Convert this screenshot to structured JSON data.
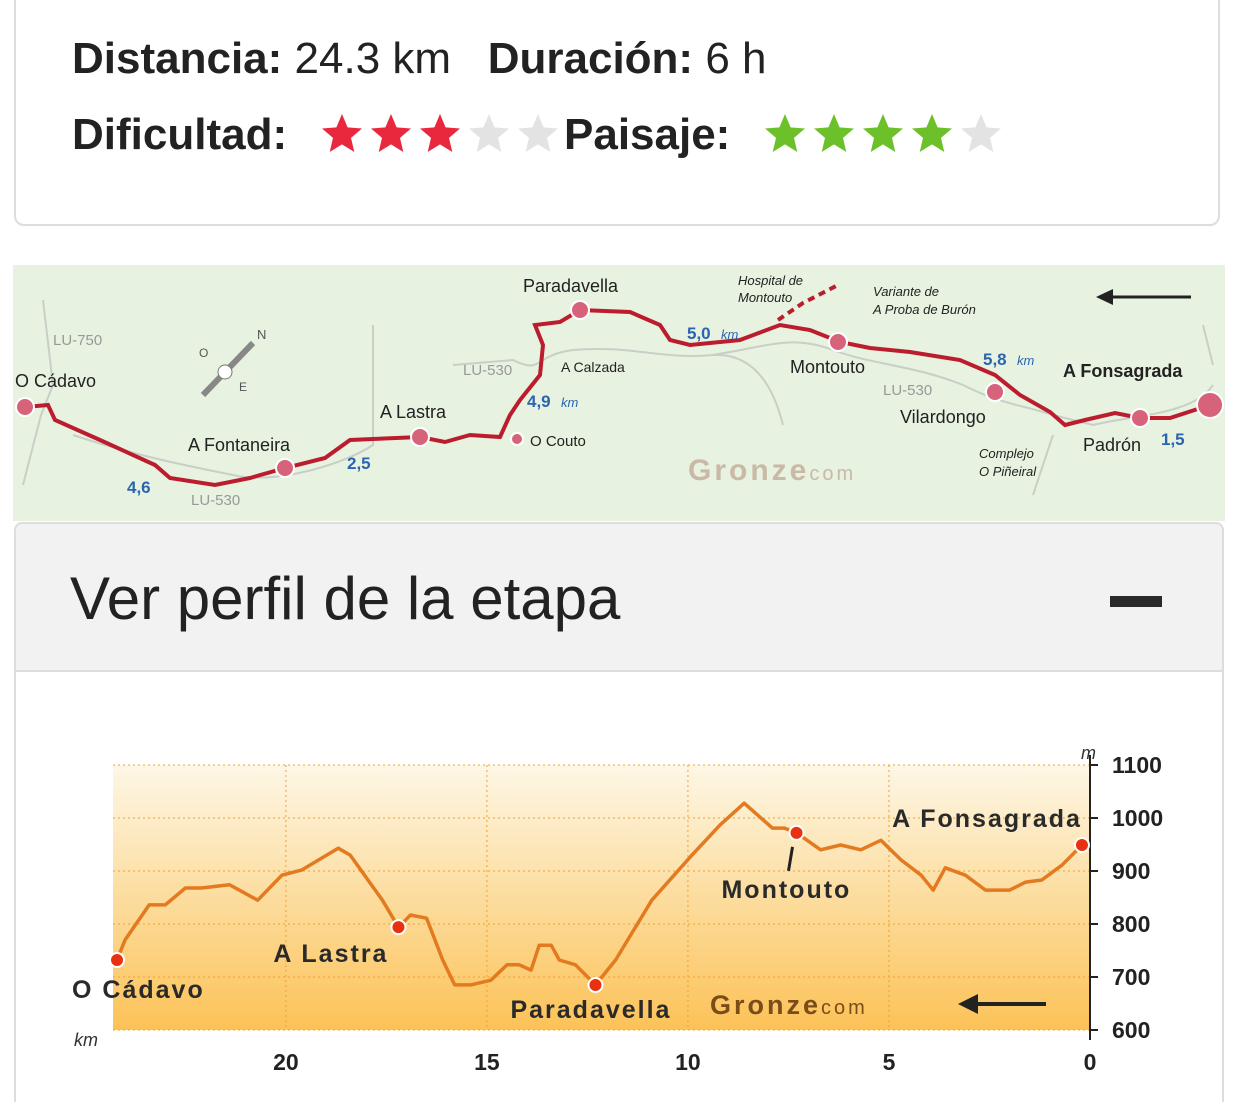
{
  "info": {
    "distance_label": "Distancia:",
    "distance": "24.3 km",
    "duration_label": "Duración:",
    "duration": "6 h",
    "difficulty_label": "Dificultad:",
    "difficulty": {
      "rating": 3,
      "out_of": 5,
      "color": "#e8283c"
    },
    "scenery_label": "Paisaje:",
    "scenery": {
      "rating": 4,
      "out_of": 5,
      "color": "#6cc12a"
    }
  },
  "map": {
    "labels": [
      "LU-750",
      "O Cádavo",
      "A Fontaneira",
      "LU-530",
      "A Lastra",
      "LU-530",
      "A Calzada",
      "O Couto",
      "Paradavella",
      "Hospital de",
      "Montouto",
      "Variante de",
      "A Proba de Burón",
      "Montouto",
      "LU-530",
      "Vilardongo",
      "A Fonsagrada",
      "Complejo",
      "O Piñeiral",
      "Padrón"
    ],
    "distances": [
      "4,6",
      "2,5",
      "4,9",
      "5,0",
      "5,8",
      "1,5"
    ],
    "unit": "km",
    "compass": [
      "N",
      "O",
      "E"
    ],
    "brand": "Gronze",
    "brand_suffix": "com"
  },
  "section": {
    "title": "Ver perfil de la etapa"
  },
  "chart_data": {
    "type": "line",
    "x_label": "km",
    "y_label": "m",
    "color": "#e37a20",
    "x": [
      24.2,
      24.0,
      23.4,
      23.0,
      22.5,
      22.1,
      21.4,
      20.7,
      20.1,
      19.6,
      18.7,
      18.4,
      17.6,
      17.2,
      16.9,
      16.5,
      16.1,
      15.8,
      15.4,
      14.9,
      14.5,
      14.2,
      13.9,
      13.7,
      13.4,
      13.2,
      12.8,
      12.3,
      11.8,
      10.9,
      9.9,
      9.2,
      8.6,
      7.9,
      7.6,
      7.3,
      6.7,
      6.2,
      5.7,
      5.2,
      4.7,
      4.2,
      3.9,
      3.6,
      3.1,
      2.6,
      2.0,
      1.6,
      1.2,
      0.7,
      0.2
    ],
    "values": [
      732,
      770,
      836,
      836,
      868,
      868,
      874,
      845,
      892,
      902,
      943,
      930,
      845,
      794,
      817,
      811,
      732,
      685,
      685,
      694,
      723,
      723,
      713,
      760,
      760,
      732,
      723,
      685,
      732,
      845,
      930,
      987,
      1028,
      981,
      981,
      972,
      940,
      949,
      940,
      958,
      921,
      892,
      864,
      906,
      892,
      864,
      864,
      879,
      883,
      911,
      949
    ],
    "waypoints": {
      "names": [
        "O Cádavo",
        "A Lastra",
        "Paradavella",
        "Montouto",
        "A Fonsagrada"
      ],
      "x": [
        24.2,
        17.2,
        12.3,
        7.3,
        0.2
      ],
      "values": [
        732,
        794,
        685,
        972,
        949
      ],
      "color": "#e8320f"
    },
    "xlim": [
      24.3,
      0
    ],
    "ylim": [
      600,
      1100
    ],
    "xticks": [
      20,
      15,
      10,
      5,
      0
    ],
    "yticks": [
      600,
      700,
      800,
      900,
      1000,
      1100
    ],
    "grid": true,
    "brand": "Gronze",
    "brand_suffix": "com"
  }
}
